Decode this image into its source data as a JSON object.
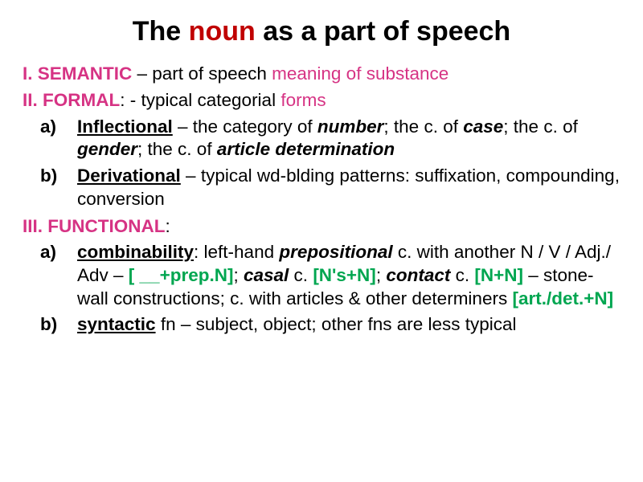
{
  "title": {
    "pre": "The ",
    "accent": "noun",
    "post": " as a part of speech"
  },
  "semantic": {
    "label": "I. SEMANTIC",
    "text1": " – part of speech ",
    "highlight": "meaning of substance"
  },
  "formal": {
    "label": "II. FORMAL",
    "text1": ": - typical categorial ",
    "highlight": "forms"
  },
  "formal_a": {
    "marker": "a)",
    "lead": "Inflectional",
    "t1": " – the category of ",
    "i1": "number",
    "t2": "; the c. of ",
    "i2": "case",
    "t3": "; the c. of ",
    "i3": "gender",
    "t4": "; the c. of ",
    "i4": "article determination"
  },
  "formal_b": {
    "marker": "b)",
    "lead": "Derivational",
    "t1": " – typical wd-blding patterns: suffixation, compounding, conversion"
  },
  "functional": {
    "label": "III. FUNCTIONAL",
    "colon": ":"
  },
  "func_a": {
    "marker": "a)",
    "lead": "combinability",
    "t1": ": left-hand ",
    "i1": "prepositional",
    "t2": " c. with another N / V / Adj./ Adv – ",
    "g1": "[ __+prep.N]",
    "t3": "; ",
    "i2": "casal",
    "t4": " c. ",
    "g2": "[N's+N]",
    "t5": "; ",
    "i3": "contact",
    "t6": " c. ",
    "g3": "[N+N]",
    "t7": " – stone-wall constructions; c. with articles & other determiners ",
    "g4": "[art./det.+N]"
  },
  "func_b": {
    "marker": "b)",
    "lead": "syntactic",
    "t1": " fn – subject, object; other fns are less typical"
  },
  "colors": {
    "accent_red": "#c00000",
    "magenta": "#d63384",
    "green": "#00a650",
    "text": "#000000",
    "background": "#ffffff"
  },
  "typography": {
    "title_fontsize": 34,
    "body_fontsize": 22.5,
    "font_family": "Arial"
  }
}
